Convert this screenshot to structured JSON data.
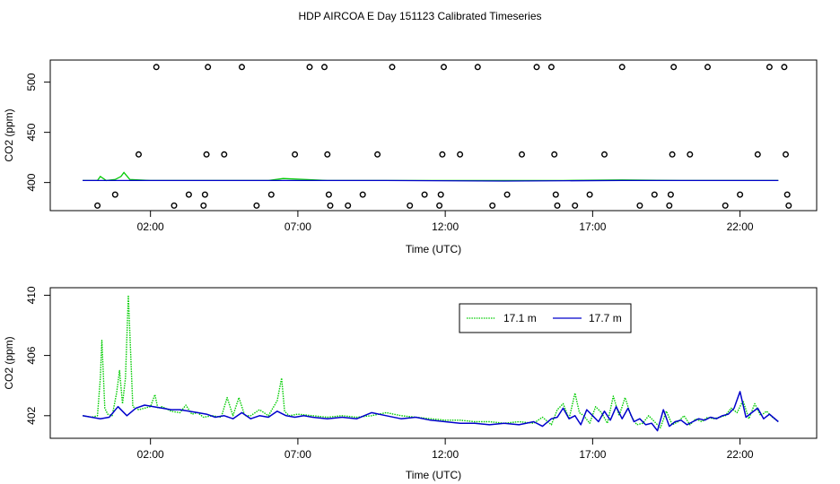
{
  "title": "HDP AIRCOA E  Day 151123  Calibrated Timeseries",
  "colors": {
    "series_17_1": "#00cc00",
    "series_17_7": "#0000cc",
    "axis": "#000000",
    "markers": "#000000"
  },
  "chart_data": [
    {
      "type": "scatter+line",
      "xlabel": "Time (UTC)",
      "ylabel": "CO2 (ppm)",
      "xlim": [
        -1.4,
        24.6
      ],
      "ylim": [
        372,
        522
      ],
      "xticks": [
        2,
        7,
        12,
        17,
        22
      ],
      "xtick_labels": [
        "02:00",
        "07:00",
        "12:00",
        "17:00",
        "22:00"
      ],
      "yticks": [
        400,
        450,
        500
      ],
      "ytick_labels": [
        "400",
        "450",
        "500"
      ],
      "calibration_points": [
        {
          "x": 0.2,
          "y": 377
        },
        {
          "x": 0.8,
          "y": 388
        },
        {
          "x": 1.6,
          "y": 428
        },
        {
          "x": 2.2,
          "y": 515
        },
        {
          "x": 2.8,
          "y": 377
        },
        {
          "x": 3.3,
          "y": 388
        },
        {
          "x": 3.8,
          "y": 377
        },
        {
          "x": 3.85,
          "y": 388
        },
        {
          "x": 3.9,
          "y": 428
        },
        {
          "x": 3.95,
          "y": 515
        },
        {
          "x": 4.5,
          "y": 428
        },
        {
          "x": 5.1,
          "y": 515
        },
        {
          "x": 5.6,
          "y": 377
        },
        {
          "x": 6.1,
          "y": 388
        },
        {
          "x": 6.9,
          "y": 428
        },
        {
          "x": 7.4,
          "y": 515
        },
        {
          "x": 7.9,
          "y": 515
        },
        {
          "x": 8.0,
          "y": 428
        },
        {
          "x": 8.05,
          "y": 388
        },
        {
          "x": 8.1,
          "y": 377
        },
        {
          "x": 8.7,
          "y": 377
        },
        {
          "x": 9.2,
          "y": 388
        },
        {
          "x": 9.7,
          "y": 428
        },
        {
          "x": 10.2,
          "y": 515
        },
        {
          "x": 10.8,
          "y": 377
        },
        {
          "x": 11.3,
          "y": 388
        },
        {
          "x": 11.8,
          "y": 377
        },
        {
          "x": 11.85,
          "y": 388
        },
        {
          "x": 11.9,
          "y": 428
        },
        {
          "x": 11.95,
          "y": 515
        },
        {
          "x": 12.5,
          "y": 428
        },
        {
          "x": 13.1,
          "y": 515
        },
        {
          "x": 13.6,
          "y": 377
        },
        {
          "x": 14.1,
          "y": 388
        },
        {
          "x": 14.6,
          "y": 428
        },
        {
          "x": 15.1,
          "y": 515
        },
        {
          "x": 15.6,
          "y": 515
        },
        {
          "x": 15.7,
          "y": 428
        },
        {
          "x": 15.75,
          "y": 388
        },
        {
          "x": 15.8,
          "y": 377
        },
        {
          "x": 16.4,
          "y": 377
        },
        {
          "x": 16.9,
          "y": 388
        },
        {
          "x": 17.4,
          "y": 428
        },
        {
          "x": 18.0,
          "y": 515
        },
        {
          "x": 18.6,
          "y": 377
        },
        {
          "x": 19.1,
          "y": 388
        },
        {
          "x": 19.6,
          "y": 377
        },
        {
          "x": 19.65,
          "y": 388
        },
        {
          "x": 19.7,
          "y": 428
        },
        {
          "x": 19.75,
          "y": 515
        },
        {
          "x": 20.3,
          "y": 428
        },
        {
          "x": 20.9,
          "y": 515
        },
        {
          "x": 21.5,
          "y": 377
        },
        {
          "x": 22.0,
          "y": 388
        },
        {
          "x": 22.6,
          "y": 428
        },
        {
          "x": 23.0,
          "y": 515
        },
        {
          "x": 23.5,
          "y": 515
        },
        {
          "x": 23.55,
          "y": 428
        },
        {
          "x": 23.6,
          "y": 388
        },
        {
          "x": 23.65,
          "y": 377
        }
      ],
      "series": [
        {
          "x": [
            -0.3,
            0.0,
            0.2,
            0.3,
            0.5,
            0.8,
            1.0,
            1.1,
            1.3,
            2.0,
            4.0,
            6.0,
            6.5,
            8.0,
            10.0,
            12.0,
            14.0,
            16.0,
            18.0,
            20.0,
            22.0,
            23.3
          ],
          "y": [
            402,
            402,
            402,
            406,
            402,
            403,
            406,
            410,
            403,
            402,
            402,
            402,
            404,
            402,
            402,
            402,
            402,
            402,
            402.5,
            402,
            402,
            402
          ]
        },
        {
          "x": [
            -0.3,
            2.0,
            6.0,
            10.0,
            14.0,
            18.0,
            22.0,
            23.3
          ],
          "y": [
            402,
            402,
            402,
            402,
            401.5,
            402,
            402,
            402
          ]
        }
      ]
    },
    {
      "type": "line",
      "xlabel": "Time (UTC)",
      "ylabel": "CO2 (ppm)",
      "xlim": [
        -1.4,
        24.6
      ],
      "ylim": [
        400.5,
        410.5
      ],
      "xticks": [
        2,
        7,
        12,
        17,
        22
      ],
      "xtick_labels": [
        "02:00",
        "07:00",
        "12:00",
        "17:00",
        "22:00"
      ],
      "yticks": [
        402,
        406,
        410
      ],
      "ytick_labels": [
        "402",
        "406",
        "410"
      ],
      "legend_position": "top-right",
      "series": [
        {
          "name": "17.1 m",
          "color": "#00cc00",
          "x": [
            -0.3,
            0.0,
            0.2,
            0.3,
            0.35,
            0.45,
            0.55,
            0.7,
            0.85,
            0.95,
            1.05,
            1.15,
            1.25,
            1.4,
            1.6,
            1.8,
            2.0,
            2.15,
            2.25,
            2.4,
            2.7,
            3.0,
            3.2,
            3.4,
            3.6,
            3.8,
            4.1,
            4.4,
            4.6,
            4.8,
            5.0,
            5.2,
            5.4,
            5.7,
            6.0,
            6.3,
            6.45,
            6.55,
            6.7,
            7.0,
            7.5,
            8.0,
            8.5,
            9.0,
            9.5,
            10.0,
            10.5,
            11.0,
            11.5,
            12.0,
            12.5,
            13.0,
            13.5,
            14.0,
            14.5,
            15.0,
            15.3,
            15.6,
            15.8,
            16.0,
            16.2,
            16.4,
            16.55,
            16.7,
            16.9,
            17.1,
            17.3,
            17.5,
            17.7,
            17.9,
            18.1,
            18.3,
            18.5,
            18.7,
            18.9,
            19.1,
            19.3,
            19.5,
            19.7,
            19.9,
            20.1,
            20.3,
            20.5,
            20.7,
            20.9,
            21.1,
            21.3,
            21.5,
            21.7,
            21.9,
            22.1,
            22.3,
            22.5,
            22.7,
            22.9,
            23.1,
            23.3
          ],
          "y": [
            402.0,
            401.9,
            402.0,
            404.5,
            407.0,
            402.5,
            402.1,
            402.0,
            403.5,
            405.0,
            402.8,
            404.5,
            410.0,
            402.6,
            402.4,
            402.5,
            402.6,
            403.4,
            402.5,
            402.6,
            402.3,
            402.2,
            402.7,
            402.1,
            402.2,
            401.9,
            402.0,
            401.9,
            403.2,
            402.0,
            403.2,
            402.0,
            402.0,
            402.4,
            402.0,
            403.0,
            404.5,
            402.3,
            402.0,
            402.1,
            402.0,
            401.9,
            402.0,
            401.9,
            402.0,
            402.2,
            402.0,
            401.9,
            401.8,
            401.7,
            401.7,
            401.6,
            401.6,
            401.5,
            401.6,
            401.5,
            401.9,
            401.4,
            402.4,
            402.8,
            401.8,
            403.5,
            402.2,
            402.0,
            401.5,
            402.6,
            402.2,
            401.5,
            403.3,
            402.0,
            403.2,
            402.0,
            401.4,
            401.5,
            402.0,
            401.6,
            401.2,
            402.3,
            401.4,
            401.6,
            402.0,
            401.4,
            401.8,
            401.6,
            401.9,
            401.8,
            401.9,
            402.0,
            402.5,
            402.2,
            403.0,
            401.8,
            402.8,
            402.0,
            402.3,
            401.9,
            401.6
          ]
        },
        {
          "name": "17.7 m",
          "color": "#0000cc",
          "x": [
            -0.3,
            0.0,
            0.3,
            0.6,
            0.9,
            1.2,
            1.5,
            1.8,
            2.1,
            2.4,
            2.7,
            3.0,
            3.3,
            3.6,
            3.9,
            4.2,
            4.5,
            4.8,
            5.1,
            5.4,
            5.7,
            6.0,
            6.3,
            6.6,
            6.9,
            7.2,
            7.5,
            8.0,
            8.5,
            9.0,
            9.5,
            10.0,
            10.5,
            11.0,
            11.5,
            12.0,
            12.5,
            13.0,
            13.5,
            14.0,
            14.5,
            15.0,
            15.3,
            15.6,
            15.8,
            16.0,
            16.2,
            16.4,
            16.6,
            16.8,
            17.0,
            17.2,
            17.4,
            17.6,
            17.8,
            18.0,
            18.2,
            18.4,
            18.6,
            18.8,
            19.0,
            19.2,
            19.4,
            19.6,
            19.8,
            20.0,
            20.2,
            20.4,
            20.6,
            20.8,
            21.0,
            21.2,
            21.4,
            21.6,
            21.8,
            22.0,
            22.2,
            22.4,
            22.6,
            22.8,
            23.0,
            23.3
          ],
          "y": [
            402.0,
            401.9,
            401.8,
            401.9,
            402.6,
            402.0,
            402.5,
            402.7,
            402.6,
            402.5,
            402.4,
            402.4,
            402.3,
            402.2,
            402.1,
            401.9,
            402.0,
            401.8,
            402.2,
            401.8,
            402.0,
            401.9,
            402.3,
            402.0,
            401.9,
            402.0,
            401.9,
            401.8,
            401.9,
            401.8,
            402.2,
            402.0,
            401.8,
            401.9,
            401.7,
            401.6,
            401.5,
            401.5,
            401.4,
            401.5,
            401.4,
            401.6,
            401.3,
            401.8,
            401.9,
            402.5,
            401.8,
            402.0,
            401.4,
            402.4,
            402.0,
            401.6,
            402.3,
            401.7,
            402.6,
            401.8,
            402.5,
            401.6,
            401.8,
            401.4,
            401.5,
            401.0,
            402.4,
            401.3,
            401.6,
            401.7,
            401.4,
            401.6,
            401.8,
            401.7,
            401.9,
            401.8,
            402.0,
            402.1,
            402.5,
            403.6,
            401.9,
            402.2,
            402.5,
            401.8,
            402.1,
            401.6
          ]
        }
      ]
    }
  ]
}
